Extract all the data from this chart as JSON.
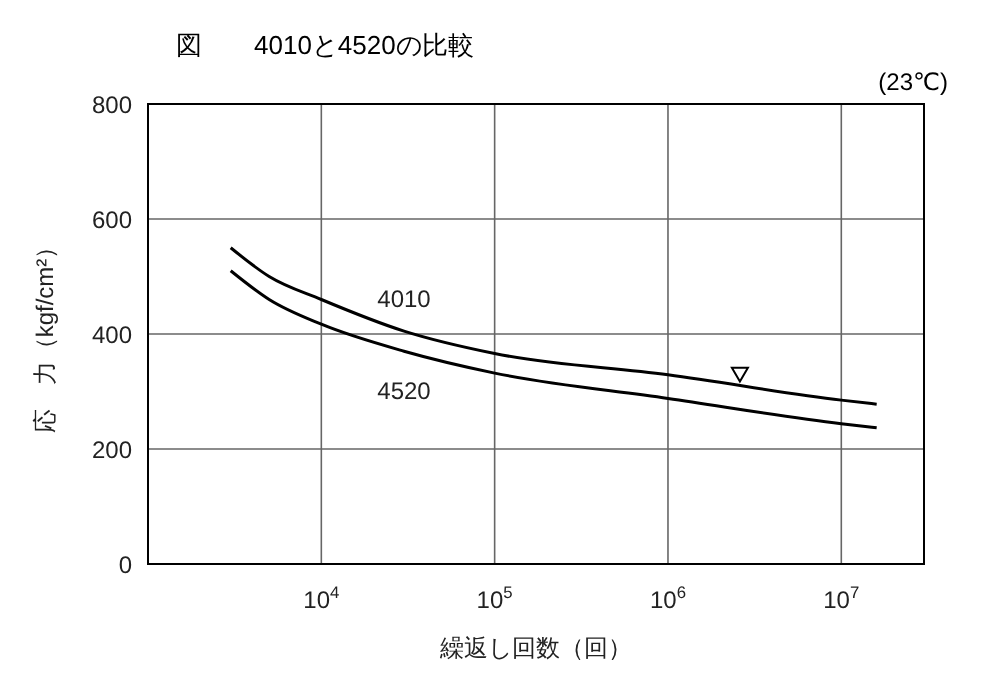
{
  "chart_data": {
    "type": "line",
    "title": "図　　4010と4520の比較",
    "xlabel": "繰返し回数（回）",
    "ylabel": "応　力（kgf/cm²）",
    "log": "x",
    "grid": true,
    "legend": false,
    "marker": "none",
    "line_style": "solid",
    "xlim": [
      1000,
      30000000
    ],
    "xticks": [
      {
        "value": 10000,
        "label": "10$^{4}$"
      },
      {
        "value": 100000,
        "label": "10$^{5}$"
      },
      {
        "value": 1000000,
        "label": "10$^{6}$"
      },
      {
        "value": 10000000,
        "label": "10$^{7}$"
      }
    ],
    "ylim": [
      0,
      800
    ],
    "yticks": [
      0,
      200,
      400,
      600,
      800
    ],
    "annotations": [
      "(23℃)"
    ],
    "series": [
      {
        "name": "4010",
        "color": "#000000",
        "x": [
          3000,
          5000,
          10000,
          30000,
          100000,
          1000000,
          10000000,
          16000000
        ],
        "values": [
          550,
          500,
          460,
          405,
          366,
          329,
          285,
          278
        ]
      },
      {
        "name": "4520",
        "color": "#000000",
        "x": [
          3000,
          5000,
          10000,
          30000,
          100000,
          1000000,
          10000000,
          16000000
        ],
        "values": [
          510,
          460,
          417,
          370,
          332,
          288,
          244,
          237
        ]
      },
      {
        "type": "scatter",
        "marker": "triangle",
        "color": "#000000",
        "x": [
          2600000
        ],
        "values": [
          330
        ]
      }
    ]
  }
}
